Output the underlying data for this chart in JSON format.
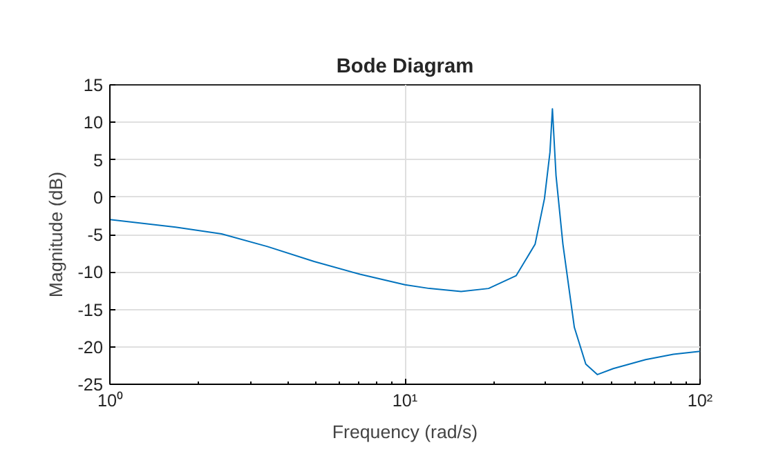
{
  "chart_data": {
    "type": "line",
    "title": "Bode Diagram",
    "xlabel": "Frequency (rad/s)",
    "ylabel": "Magnitude (dB)",
    "log": "x",
    "grid": true,
    "xlim": [
      1,
      100
    ],
    "xticks": [
      {
        "value": 1,
        "label": "10⁰"
      },
      {
        "value": 10,
        "label": "10¹"
      },
      {
        "value": 100,
        "label": "10²"
      }
    ],
    "ylim": [
      -25,
      15
    ],
    "yticks": [
      -25,
      -20,
      -15,
      -10,
      -5,
      0,
      5,
      10,
      15
    ],
    "series": [
      {
        "color": "#0072bd",
        "x": [
          1,
          1.67,
          2.39,
          3.42,
          4.92,
          7.04,
          10,
          12.1,
          15.5,
          19.2,
          23.8,
          27.6,
          29.7,
          31.0,
          31.6,
          32.5,
          34.3,
          37.5,
          41.0,
          44.9,
          50.8,
          65.4,
          81.2,
          100
        ],
        "values": [
          -3.0,
          -4.0,
          -4.9,
          -6.6,
          -8.6,
          -10.3,
          -11.7,
          -12.2,
          -12.6,
          -12.2,
          -10.5,
          -6.3,
          -0.2,
          6.0,
          11.8,
          2.9,
          -6.3,
          -17.4,
          -22.3,
          -23.7,
          -22.9,
          -21.7,
          -21.0,
          -20.6
        ]
      }
    ]
  }
}
